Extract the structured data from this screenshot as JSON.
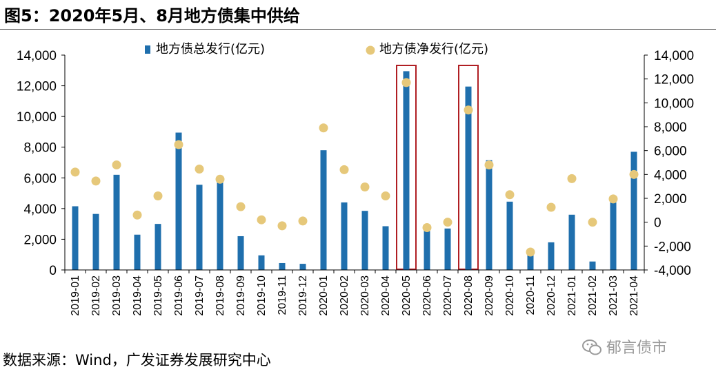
{
  "title": "图5：2020年5月、8月地方债集中供给",
  "source": "数据来源：Wind，广发证券发展研究中心",
  "watermark": "郁言债市",
  "colors": {
    "bar": "#1f6fad",
    "dot": "#e6c87a",
    "highlight": "#b01e23",
    "axis": "#000000"
  },
  "chart_data": {
    "type": "bar",
    "title": "2020年5月、8月地方债集中供给",
    "categories": [
      "2019-01",
      "2019-02",
      "2019-03",
      "2019-04",
      "2019-05",
      "2019-06",
      "2019-07",
      "2019-08",
      "2019-09",
      "2019-10",
      "2019-11",
      "2019-12",
      "2020-01",
      "2020-02",
      "2020-03",
      "2020-04",
      "2020-05",
      "2020-06",
      "2020-07",
      "2020-08",
      "2020-09",
      "2020-10",
      "2020-11",
      "2020-12",
      "2021-01",
      "2021-02",
      "2021-03",
      "2021-04"
    ],
    "series": [
      {
        "name": "地方债总发行(亿元)",
        "type": "bar",
        "axis": "left",
        "values": [
          4150,
          3650,
          6200,
          2300,
          3000,
          8950,
          5550,
          5800,
          2200,
          950,
          450,
          400,
          7800,
          4400,
          3850,
          2850,
          12950,
          2750,
          2700,
          11950,
          7150,
          4450,
          950,
          1800,
          3600,
          550,
          4400,
          7700
        ]
      },
      {
        "name": "地方债净发行(亿元)",
        "type": "scatter",
        "axis": "right",
        "values": [
          4200,
          3450,
          4800,
          600,
          2200,
          6500,
          4450,
          3600,
          1300,
          200,
          -300,
          100,
          7900,
          4400,
          2950,
          2200,
          11700,
          -450,
          0,
          9400,
          4800,
          2300,
          -2500,
          1250,
          3650,
          0,
          1950,
          4000
        ]
      }
    ],
    "y_left": {
      "ylim": [
        0,
        14000
      ],
      "ticks": [
        0,
        2000,
        4000,
        6000,
        8000,
        10000,
        12000,
        14000
      ],
      "tick_labels": [
        "0",
        "2,000",
        "4,000",
        "6,000",
        "8,000",
        "10,000",
        "12,000",
        "14,000"
      ]
    },
    "y_right": {
      "ylim": [
        -4000,
        14000
      ],
      "ticks": [
        -4000,
        -2000,
        0,
        2000,
        4000,
        6000,
        8000,
        10000,
        12000,
        14000
      ],
      "tick_labels": [
        "-4,000",
        "-2,000",
        "0",
        "2,000",
        "4,000",
        "6,000",
        "8,000",
        "10,000",
        "12,000",
        "14,000"
      ]
    },
    "highlighted_categories": [
      "2020-05",
      "2020-08"
    ],
    "legend": {
      "placement": "top-center"
    }
  }
}
